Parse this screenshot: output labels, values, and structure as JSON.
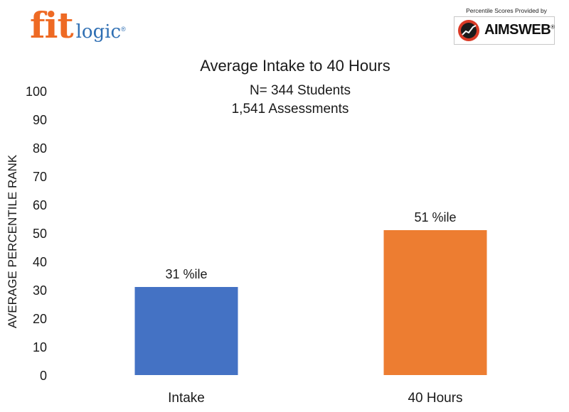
{
  "logo": {
    "brand_fit": "fit",
    "brand_logic": "logic",
    "registered": "®"
  },
  "provider": {
    "caption": "Percentile Scores Provided by",
    "brand": "AIMSWEB",
    "registered": "®"
  },
  "colors": {
    "intake": "#4472c4",
    "forty_hours": "#ed7d31",
    "logo_orange": "#ee6a24",
    "logo_blue": "#2f6fb3"
  },
  "chart_data": {
    "type": "bar",
    "title": "Average Intake to 40 Hours",
    "subtitle_lines": [
      "N= 344 Students",
      "1,541  Assessments"
    ],
    "categories": [
      "Intake",
      "40 Hours"
    ],
    "values": [
      31,
      51
    ],
    "data_labels": [
      "31 %ile",
      "51 %ile"
    ],
    "ylabel": "AVERAGE PERCENTILE RANK",
    "xlabel": "",
    "ylim": [
      0,
      100
    ],
    "yticks": [
      0,
      10,
      20,
      30,
      40,
      50,
      60,
      70,
      80,
      90,
      100
    ],
    "grid": false,
    "legend": "none"
  }
}
